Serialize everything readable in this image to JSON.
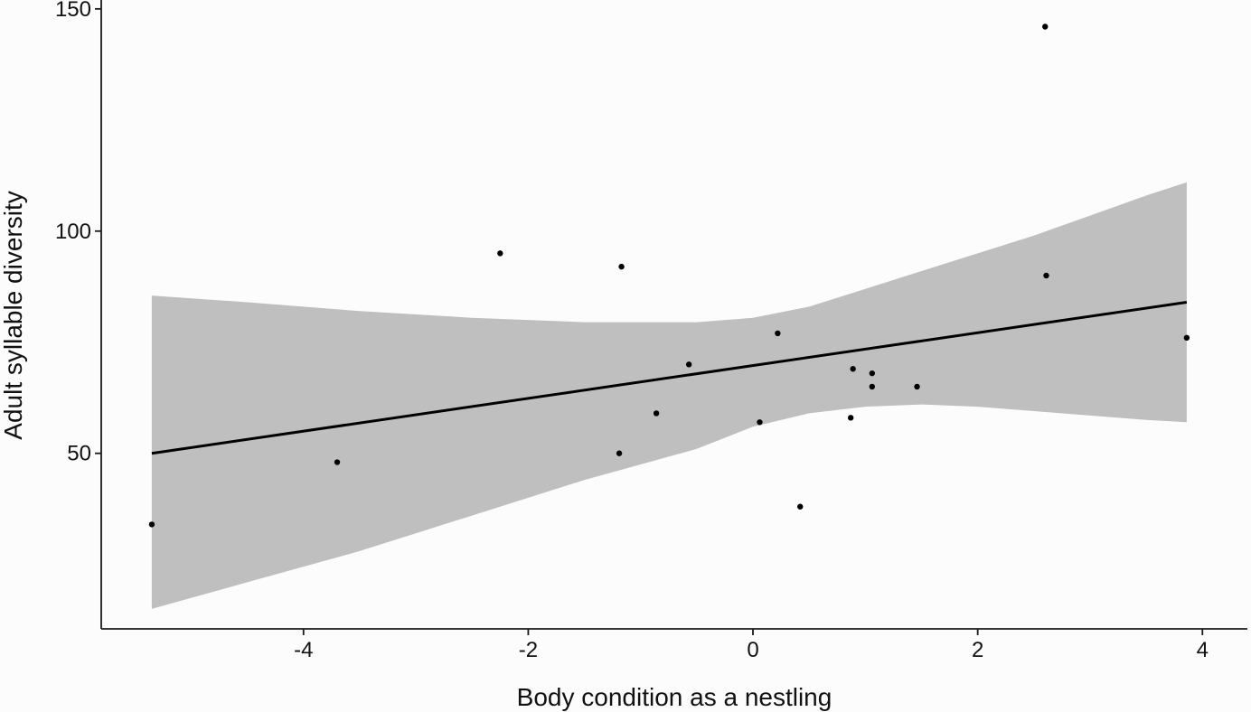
{
  "chart_data": {
    "type": "scatter",
    "title": "",
    "xlabel": "Body condition as a nestling",
    "ylabel": "Adult syllable diversity",
    "xlim": [
      -5.8,
      4.4
    ],
    "ylim": [
      10.5,
      152
    ],
    "xticks": [
      -4,
      -2,
      0,
      2,
      4
    ],
    "xtick_labels": [
      "-4",
      "-2",
      "0",
      "2",
      "4"
    ],
    "yticks": [
      50,
      100,
      150
    ],
    "ytick_labels": [
      "50",
      "100",
      "150"
    ],
    "grid": false,
    "legend": "none",
    "series": [
      {
        "points": [
          {
            "x": -5.35,
            "y": 34
          },
          {
            "x": -3.7,
            "y": 48
          },
          {
            "x": -2.25,
            "y": 95
          },
          {
            "x": -1.17,
            "y": 92
          },
          {
            "x": -1.19,
            "y": 50
          },
          {
            "x": -0.86,
            "y": 59
          },
          {
            "x": -0.57,
            "y": 70
          },
          {
            "x": 0.06,
            "y": 57
          },
          {
            "x": 0.22,
            "y": 77
          },
          {
            "x": 0.42,
            "y": 38
          },
          {
            "x": 0.87,
            "y": 58
          },
          {
            "x": 0.89,
            "y": 69
          },
          {
            "x": 1.06,
            "y": 68
          },
          {
            "x": 1.06,
            "y": 65
          },
          {
            "x": 1.46,
            "y": 65
          },
          {
            "x": 2.6,
            "y": 146
          },
          {
            "x": 2.61,
            "y": 90
          },
          {
            "x": 3.86,
            "y": 76
          }
        ]
      }
    ],
    "fit_line": {
      "x": [
        -5.35,
        3.86
      ],
      "y": [
        50,
        84
      ]
    },
    "confidence_band": {
      "x": [
        -5.35,
        -4.5,
        -3.5,
        -2.5,
        -1.5,
        -0.5,
        0.0,
        0.5,
        1.0,
        1.5,
        2.0,
        2.5,
        3.0,
        3.5,
        3.86
      ],
      "upper": [
        85.5,
        84,
        82,
        80.5,
        79.5,
        79.5,
        80.5,
        83,
        87,
        91,
        95,
        99,
        103.5,
        108,
        111
      ],
      "lower": [
        15,
        21,
        28,
        36,
        44,
        51,
        56,
        59,
        60.5,
        61,
        60.5,
        59.5,
        58.5,
        57.5,
        57
      ]
    },
    "colors": {
      "band": "#c0bfc0",
      "line": "#000000",
      "points": "#000000",
      "axis": "#1a1a1a"
    }
  }
}
